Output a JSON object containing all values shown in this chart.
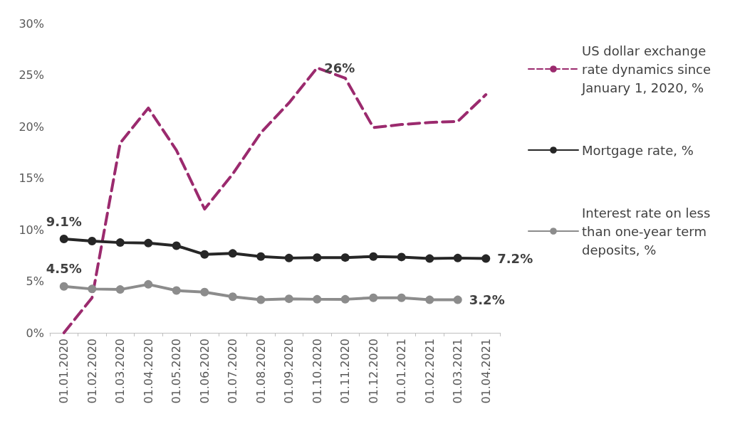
{
  "chart_data": {
    "type": "line",
    "categories": [
      "01.01.2020",
      "01.02.2020",
      "01.03.2020",
      "01.04.2020",
      "01.05.2020",
      "01.06.2020",
      "01.07.2020",
      "01.08.2020",
      "01.09.2020",
      "01.10.2020",
      "01.11.2020",
      "01.12.2020",
      "01.01.2021",
      "01.02.2021",
      "01.03.2021",
      "01.04.2021"
    ],
    "series": [
      {
        "name": "US dollar exchange rate dynamics since January 1, 2020, %",
        "color": "#9b2a6e",
        "marker": "none",
        "line_style": "dashed",
        "values": [
          0,
          3.4,
          18.4,
          21.8,
          17.7,
          12.0,
          15.4,
          19.4,
          22.3,
          25.7,
          24.7,
          19.9,
          20.2,
          20.4,
          20.5,
          23.1
        ],
        "value_labels": [
          null,
          null,
          null,
          null,
          null,
          null,
          null,
          null,
          null,
          "26%",
          null,
          null,
          null,
          null,
          null,
          null
        ]
      },
      {
        "name": "Mortgage rate, %",
        "color": "#262626",
        "marker": "circle",
        "line_style": "solid",
        "values": [
          9.1,
          8.9,
          8.75,
          8.7,
          8.45,
          7.6,
          7.7,
          7.4,
          7.25,
          7.3,
          7.3,
          7.4,
          7.35,
          7.2,
          7.25,
          7.2
        ],
        "value_labels": [
          "9.1%",
          null,
          null,
          null,
          null,
          null,
          null,
          null,
          null,
          null,
          null,
          null,
          null,
          null,
          null,
          "7.2%"
        ]
      },
      {
        "name": "Interest rate on less than one-year term deposits, %",
        "color": "#8c8c8c",
        "marker": "circle",
        "line_style": "solid",
        "values": [
          4.5,
          4.25,
          4.2,
          4.7,
          4.1,
          3.95,
          3.5,
          3.2,
          3.3,
          3.25,
          3.25,
          3.4,
          3.4,
          3.2,
          3.2,
          null
        ],
        "value_labels": [
          "4.5%",
          null,
          null,
          null,
          null,
          null,
          null,
          null,
          null,
          null,
          null,
          null,
          null,
          null,
          "3.2%",
          null
        ]
      }
    ],
    "ylim": [
      0,
      30
    ],
    "yticks": [
      {
        "value": 0,
        "label": "0%"
      },
      {
        "value": 5,
        "label": "5%"
      },
      {
        "value": 10,
        "label": "10%"
      },
      {
        "value": 15,
        "label": "15%"
      },
      {
        "value": 20,
        "label": "20%"
      },
      {
        "value": 25,
        "label": "25%"
      },
      {
        "value": 30,
        "label": "30%"
      }
    ],
    "grid": false,
    "legend": "right"
  }
}
